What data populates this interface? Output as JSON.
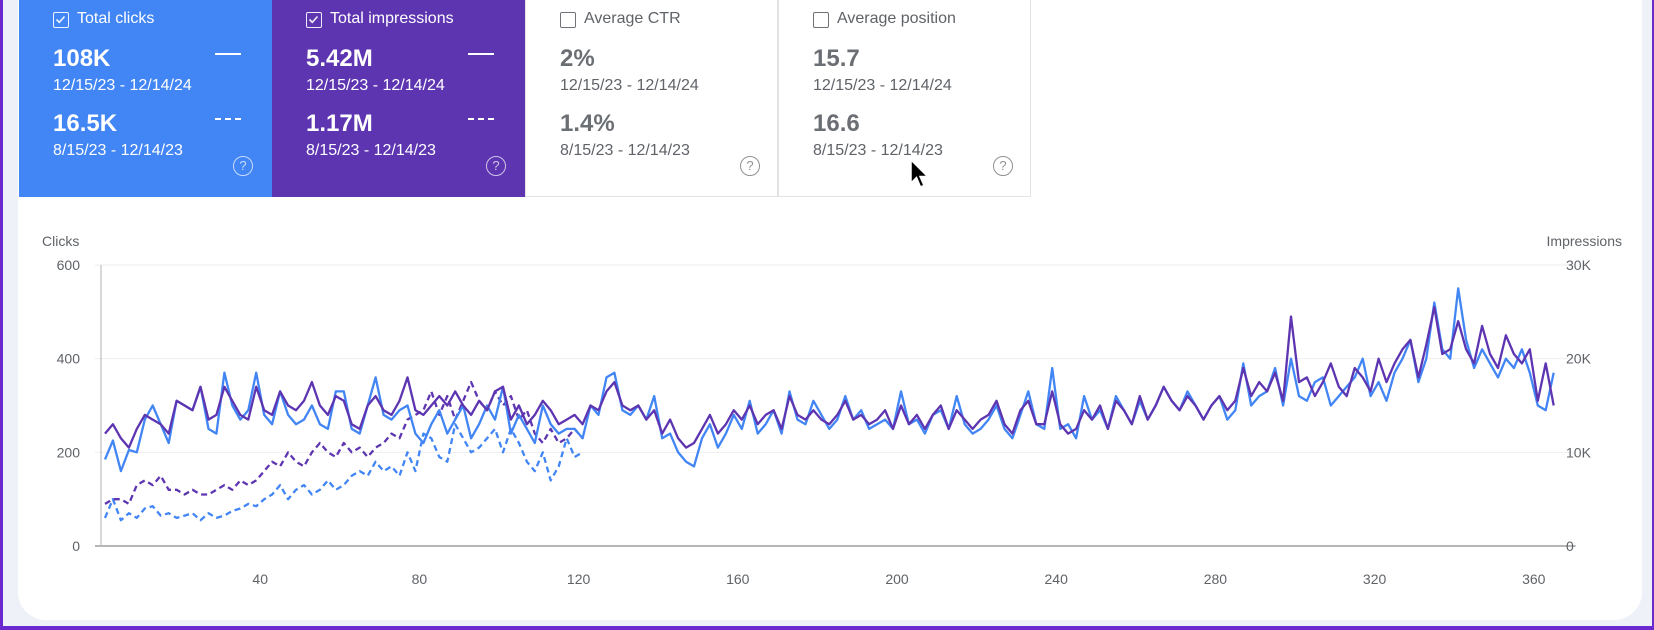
{
  "cards": [
    {
      "title": "Total clicks",
      "checked": true,
      "value_current": "108K",
      "range_current": "12/15/23 - 12/14/24",
      "value_previous": "16.5K",
      "range_previous": "8/15/23 - 12/14/23",
      "color": "#4285f4"
    },
    {
      "title": "Total impressions",
      "checked": true,
      "value_current": "5.42M",
      "range_current": "12/15/23 - 12/14/24",
      "value_previous": "1.17M",
      "range_previous": "8/15/23 - 12/14/23",
      "color": "#5e35b1"
    },
    {
      "title": "Average CTR",
      "checked": false,
      "value_current": "2%",
      "range_current": "12/15/23 - 12/14/24",
      "value_previous": "1.4%",
      "range_previous": "8/15/23 - 12/14/23"
    },
    {
      "title": "Average position",
      "checked": false,
      "value_current": "15.7",
      "range_current": "12/15/23 - 12/14/24",
      "value_previous": "16.6",
      "range_previous": "8/15/23 - 12/14/23"
    }
  ],
  "help_glyph": "?",
  "chart_data": {
    "type": "line",
    "ylabel_left": "Clicks",
    "ylabel_right": "Impressions",
    "xlim": [
      0,
      368
    ],
    "ylim_left": [
      0,
      600
    ],
    "ylim_right": [
      0,
      30000
    ],
    "x_ticks": [
      "40",
      "80",
      "120",
      "160",
      "200",
      "240",
      "280",
      "320",
      "360"
    ],
    "x_tick_values": [
      40,
      80,
      120,
      160,
      200,
      240,
      280,
      320,
      360
    ],
    "y_ticks_left": [
      "0",
      "200",
      "400",
      "600"
    ],
    "y_tick_values_left": [
      0,
      200,
      400,
      600
    ],
    "y_ticks_right": [
      "0",
      "10K",
      "20K",
      "30K"
    ],
    "y_tick_values_right": [
      0,
      10000,
      20000,
      30000
    ],
    "grid": true,
    "series": [
      {
        "metric": "clicks",
        "period": "current",
        "axis": "left",
        "style": "solid",
        "color": "#4285f4",
        "x_start": 1,
        "x_step": 2,
        "values": [
          185,
          225,
          160,
          205,
          200,
          270,
          300,
          260,
          220,
          310,
          300,
          290,
          340,
          250,
          240,
          370,
          300,
          270,
          290,
          370,
          280,
          260,
          330,
          280,
          260,
          270,
          300,
          260,
          250,
          330,
          330,
          250,
          240,
          300,
          360,
          280,
          270,
          290,
          300,
          240,
          220,
          260,
          290,
          240,
          270,
          300,
          230,
          260,
          300,
          270,
          340,
          240,
          280,
          250,
          220,
          300,
          260,
          240,
          250,
          250,
          230,
          300,
          280,
          360,
          370,
          290,
          280,
          300,
          270,
          320,
          230,
          240,
          200,
          180,
          170,
          230,
          260,
          210,
          240,
          280,
          250,
          310,
          240,
          260,
          290,
          240,
          330,
          270,
          260,
          310,
          280,
          250,
          270,
          320,
          270,
          290,
          250,
          260,
          270,
          250,
          330,
          260,
          270,
          240,
          280,
          290,
          250,
          320,
          260,
          240,
          250,
          270,
          300,
          250,
          230,
          280,
          330,
          260,
          250,
          380,
          250,
          260,
          230,
          320,
          270,
          290,
          250,
          320,
          290,
          260,
          310,
          270,
          300,
          340,
          310,
          290,
          330,
          300,
          270,
          300,
          320,
          270,
          290,
          390,
          300,
          320,
          330,
          380,
          300,
          400,
          320,
          310,
          350,
          360,
          300,
          320,
          340,
          360,
          400,
          320,
          350,
          310,
          370,
          400,
          440,
          350,
          400,
          520,
          420,
          400,
          550,
          440,
          380,
          420,
          390,
          360,
          400,
          380,
          420,
          370,
          300,
          290,
          370
        ]
      },
      {
        "metric": "impressions",
        "period": "current",
        "axis": "right",
        "style": "solid",
        "color": "#5e35b1",
        "x_start": 1,
        "x_step": 2,
        "values": [
          12000,
          13000,
          11500,
          10500,
          12500,
          14000,
          13500,
          13000,
          12000,
          15500,
          15000,
          14500,
          17000,
          13500,
          14000,
          17000,
          15500,
          14000,
          13500,
          17000,
          14500,
          14000,
          16500,
          15000,
          14500,
          15500,
          17500,
          15000,
          14000,
          16000,
          15500,
          13000,
          12500,
          15000,
          16000,
          14500,
          14000,
          15500,
          18000,
          14500,
          14000,
          15000,
          16000,
          15000,
          16500,
          15000,
          14000,
          15500,
          14500,
          16500,
          17000,
          13500,
          15000,
          13000,
          14000,
          15500,
          14500,
          13000,
          13500,
          14000,
          13000,
          15000,
          14500,
          16500,
          17500,
          15000,
          14500,
          15000,
          13500,
          14500,
          12000,
          13500,
          11500,
          10500,
          11000,
          12500,
          14000,
          12000,
          13000,
          14500,
          13500,
          15000,
          13000,
          14000,
          14500,
          12500,
          16000,
          14000,
          13500,
          14500,
          13500,
          13000,
          14000,
          15500,
          13500,
          14000,
          13000,
          13500,
          14500,
          12500,
          15000,
          13000,
          14000,
          12500,
          14000,
          15000,
          12500,
          14500,
          13500,
          12500,
          13500,
          14000,
          15500,
          13000,
          12000,
          14500,
          15500,
          13000,
          13000,
          16500,
          13000,
          12000,
          12500,
          14500,
          13500,
          15000,
          12500,
          15500,
          14500,
          13000,
          16000,
          13500,
          15000,
          17000,
          15500,
          14500,
          16000,
          15000,
          13500,
          15000,
          16000,
          14500,
          15500,
          19000,
          16000,
          17500,
          16500,
          18500,
          15500,
          24500,
          17500,
          18000,
          16000,
          17500,
          19500,
          17000,
          16000,
          19000,
          18000,
          16500,
          20000,
          17500,
          19500,
          21000,
          22000,
          18000,
          21500,
          25500,
          20500,
          21000,
          24000,
          21000,
          19500,
          23500,
          20500,
          19000,
          22500,
          20500,
          19500,
          21000,
          15500,
          19500,
          15000
        ]
      },
      {
        "metric": "clicks",
        "period": "previous",
        "axis": "left",
        "style": "dashed",
        "color": "#4285f4",
        "x_start": 1,
        "x_step": 2,
        "values": [
          60,
          100,
          55,
          70,
          60,
          80,
          85,
          65,
          70,
          60,
          65,
          70,
          55,
          70,
          60,
          65,
          75,
          80,
          90,
          85,
          100,
          110,
          130,
          100,
          120,
          130,
          110,
          120,
          140,
          120,
          130,
          150,
          160,
          150,
          180,
          160,
          170,
          150,
          200,
          160,
          240,
          230,
          190,
          180,
          260,
          230,
          200,
          210,
          230,
          250,
          200,
          250,
          220,
          180,
          160,
          200,
          140,
          170,
          230,
          190,
          200
        ]
      },
      {
        "metric": "impressions",
        "period": "previous",
        "axis": "right",
        "style": "dashed",
        "color": "#5e35b1",
        "x_start": 1,
        "x_step": 2,
        "values": [
          4500,
          5000,
          5000,
          4500,
          6500,
          7000,
          6500,
          7500,
          6000,
          6000,
          5500,
          6000,
          5500,
          5500,
          6000,
          6500,
          6000,
          7000,
          6500,
          7000,
          8000,
          9000,
          8500,
          10000,
          9000,
          8500,
          10000,
          11000,
          10000,
          9500,
          11000,
          10000,
          10500,
          9500,
          10500,
          11000,
          12000,
          11500,
          13500,
          14000,
          14500,
          16500,
          14000,
          16000,
          13500,
          15500,
          17500,
          15500,
          14500,
          16500,
          15000,
          16000,
          13500,
          14500,
          12000,
          11000,
          12500,
          11000,
          11500,
          12500,
          11500
        ]
      }
    ]
  }
}
